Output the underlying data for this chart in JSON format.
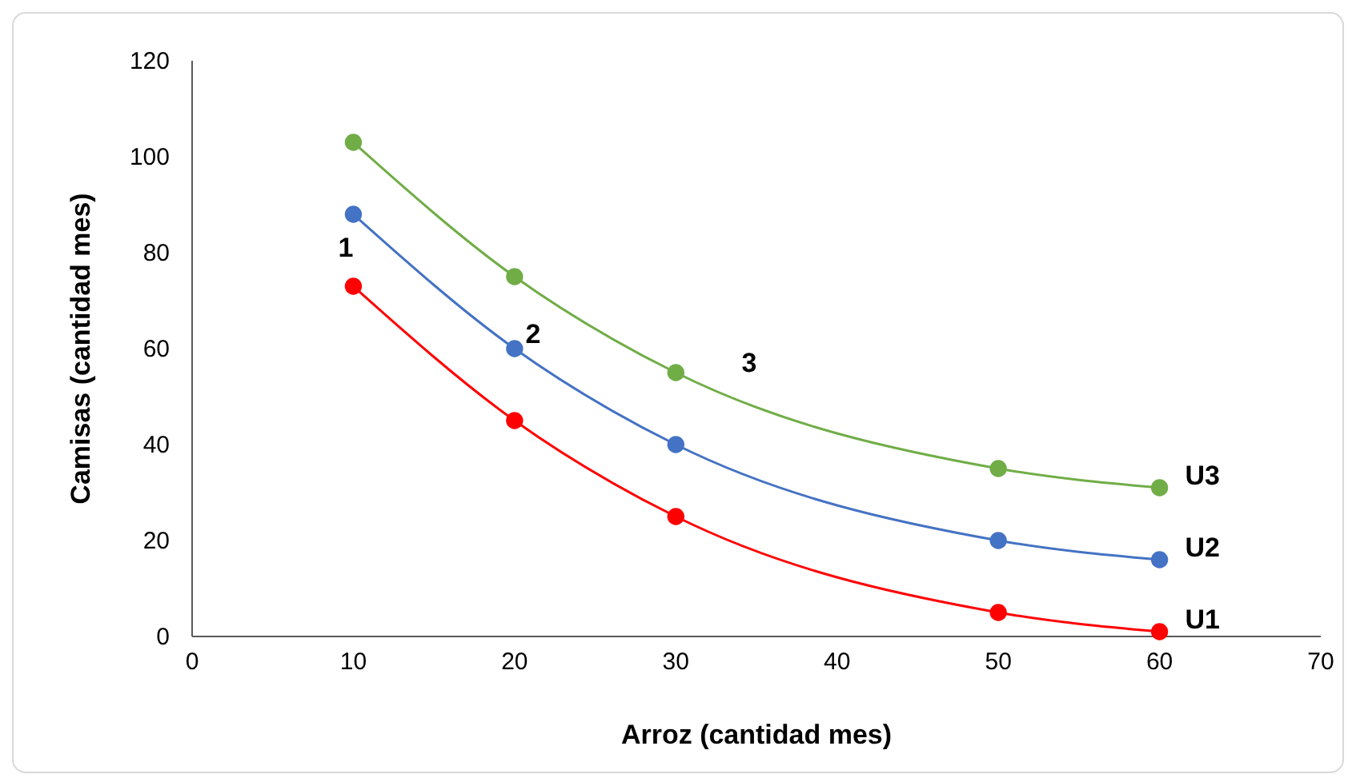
{
  "chart_data": {
    "type": "line",
    "xlabel": "Arroz (cantidad mes)",
    "ylabel": "Camisas (cantidad mes)",
    "xlim": [
      0,
      70
    ],
    "xticks": [
      0,
      10,
      20,
      30,
      40,
      50,
      60,
      70
    ],
    "ylim": [
      0,
      120
    ],
    "yticks": [
      0,
      20,
      40,
      60,
      80,
      100,
      120
    ],
    "grid": false,
    "legend": false,
    "marker": "circle",
    "line_style": "solid",
    "series": [
      {
        "name": "U1",
        "color": "#ff0000",
        "x": [
          10,
          20,
          30,
          50,
          60
        ],
        "values": [
          73,
          45,
          25,
          5,
          1
        ]
      },
      {
        "name": "U2",
        "color": "#4472c4",
        "x": [
          10,
          20,
          30,
          50,
          60
        ],
        "values": [
          88,
          60,
          40,
          20,
          16
        ]
      },
      {
        "name": "U3",
        "color": "#70ad47",
        "x": [
          10,
          20,
          30,
          50,
          60
        ],
        "values": [
          103,
          75,
          55,
          35,
          31
        ]
      }
    ],
    "annotations": [
      "1",
      "2",
      "3"
    ]
  }
}
